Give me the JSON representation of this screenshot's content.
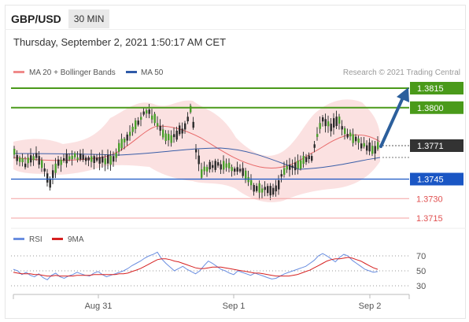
{
  "header": {
    "symbol": "GBP/USD",
    "timeframe": "30 MIN"
  },
  "date_line": "Thursday, September 2, 2021 1:50:17 AM CET",
  "attribution": "Research © 2021 Trading Central",
  "colors": {
    "support_line": "#1a56c4",
    "resistance_line": "#4a9a1a",
    "bands": "#f7c9c9",
    "ma20": "#e86a6a",
    "ma50": "#3a5ea8",
    "arrow": "#2c5f9c",
    "rsi": "#6a8ee0",
    "nine_ma": "#d62020",
    "price_tag": "#333333",
    "minor_level": "#e05050"
  },
  "chart_data": [
    {
      "type": "candlestick",
      "title": "",
      "legend": [
        {
          "label": "MA 20 + Bollinger Bands",
          "color": "#f08a8a"
        },
        {
          "label": "MA 50",
          "color": "#2f5aa8"
        }
      ],
      "current_price": "1.3771",
      "levels": [
        {
          "value": 1.3815,
          "label": "1.3815",
          "style": "green"
        },
        {
          "value": 1.38,
          "label": "1.3800",
          "style": "green"
        },
        {
          "value": 1.3745,
          "label": "1.3745",
          "style": "blue"
        },
        {
          "value": 1.373,
          "label": "1.3730",
          "style": "red"
        },
        {
          "value": 1.3715,
          "label": "1.3715",
          "style": "red"
        }
      ],
      "x_ticks": [
        "Aug 31",
        "Sep 1",
        "Sep 2"
      ],
      "arrow": "up"
    },
    {
      "type": "line",
      "legend": [
        {
          "label": "RSI",
          "color": "#6a8ee0"
        },
        {
          "label": "9MA",
          "color": "#d62020"
        }
      ],
      "y_ticks": [
        "70",
        "50",
        "30"
      ],
      "ylim": [
        20,
        80
      ],
      "rsi": [
        52,
        50,
        45,
        48,
        44,
        42,
        46,
        41,
        38,
        44,
        47,
        42,
        40,
        43,
        45,
        48,
        46,
        44,
        43,
        47,
        49,
        45,
        42,
        44,
        46,
        48,
        50,
        53,
        57,
        60,
        63,
        67,
        70,
        72,
        75,
        66,
        60,
        55,
        50,
        53,
        56,
        52,
        49,
        46,
        50,
        57,
        63,
        60,
        56,
        52,
        50,
        47,
        45,
        50,
        48,
        46,
        44,
        47,
        45,
        43,
        41,
        39,
        40,
        43,
        46,
        48,
        50,
        52,
        54,
        56,
        60,
        64,
        70,
        73,
        70,
        66,
        62,
        68,
        72,
        70,
        64,
        60,
        56,
        52,
        50,
        48,
        49
      ],
      "nine_ma": [
        48,
        47,
        46,
        46,
        46,
        45,
        45,
        44,
        43,
        43,
        44,
        43,
        43,
        43,
        43,
        44,
        44,
        44,
        44,
        45,
        45,
        45,
        45,
        45,
        45,
        46,
        46,
        47,
        49,
        51,
        53,
        56,
        59,
        62,
        65,
        66,
        66,
        65,
        63,
        62,
        60,
        58,
        56,
        54,
        53,
        53,
        54,
        55,
        55,
        55,
        54,
        53,
        52,
        51,
        50,
        49,
        48,
        47,
        47,
        46,
        45,
        44,
        43,
        43,
        43,
        43,
        44,
        45,
        47,
        49,
        51,
        54,
        57,
        60,
        63,
        65,
        66,
        66,
        67,
        68,
        67,
        65,
        63,
        60,
        57,
        54,
        52
      ]
    }
  ]
}
